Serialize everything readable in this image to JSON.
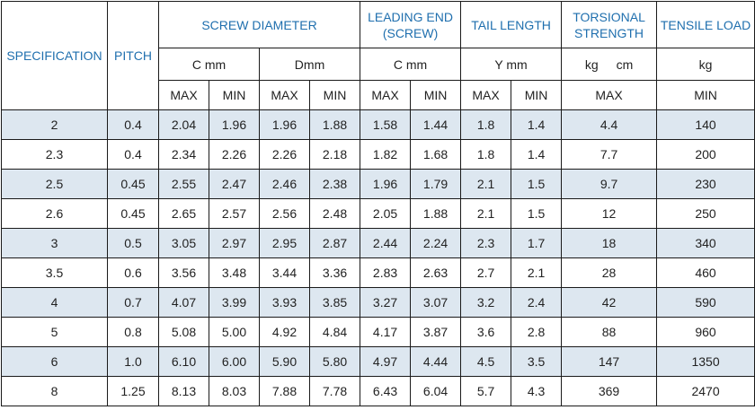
{
  "header": {
    "specification": "SPECIFICATION",
    "pitch": "PITCH",
    "screw_diameter": "SCREW DIAMETER",
    "leading_end": "LEADING END (SCREW)",
    "tail_length": "TAIL LENGTH",
    "torsional_strength": "TORSIONAL STRENGTH",
    "tensile_load": "TENSILE LOAD"
  },
  "units": {
    "screw_c": "C mm",
    "screw_d": "Dmm",
    "leading_c": "C mm",
    "tail_y": "Y mm",
    "torsional_kg": "kg",
    "torsional_cm": "cm",
    "tensile_kg": "kg"
  },
  "limits": {
    "max": "MAX",
    "min": "MIN"
  },
  "rows": [
    {
      "spec": "2",
      "pitch": "0.4",
      "c_max": "2.04",
      "c_min": "1.96",
      "d_max": "1.96",
      "d_min": "1.88",
      "le_max": "1.58",
      "le_min": "1.44",
      "y_max": "1.8",
      "y_min": "1.4",
      "torsional": "4.4",
      "tensile": "140"
    },
    {
      "spec": "2.3",
      "pitch": "0.4",
      "c_max": "2.34",
      "c_min": "2.26",
      "d_max": "2.26",
      "d_min": "2.18",
      "le_max": "1.82",
      "le_min": "1.68",
      "y_max": "1.8",
      "y_min": "1.4",
      "torsional": "7.7",
      "tensile": "200"
    },
    {
      "spec": "2.5",
      "pitch": "0.45",
      "c_max": "2.55",
      "c_min": "2.47",
      "d_max": "2.46",
      "d_min": "2.38",
      "le_max": "1.96",
      "le_min": "1.79",
      "y_max": "2.1",
      "y_min": "1.5",
      "torsional": "9.7",
      "tensile": "230"
    },
    {
      "spec": "2.6",
      "pitch": "0.45",
      "c_max": "2.65",
      "c_min": "2.57",
      "d_max": "2.56",
      "d_min": "2.48",
      "le_max": "2.05",
      "le_min": "1.88",
      "y_max": "2.1",
      "y_min": "1.5",
      "torsional": "12",
      "tensile": "250"
    },
    {
      "spec": "3",
      "pitch": "0.5",
      "c_max": "3.05",
      "c_min": "2.97",
      "d_max": "2.95",
      "d_min": "2.87",
      "le_max": "2.44",
      "le_min": "2.24",
      "y_max": "2.3",
      "y_min": "1.7",
      "torsional": "18",
      "tensile": "340"
    },
    {
      "spec": "3.5",
      "pitch": "0.6",
      "c_max": "3.56",
      "c_min": "3.48",
      "d_max": "3.44",
      "d_min": "3.36",
      "le_max": "2.83",
      "le_min": "2.63",
      "y_max": "2.7",
      "y_min": "2.1",
      "torsional": "28",
      "tensile": "460"
    },
    {
      "spec": "4",
      "pitch": "0.7",
      "c_max": "4.07",
      "c_min": "3.99",
      "d_max": "3.93",
      "d_min": "3.85",
      "le_max": "3.27",
      "le_min": "3.07",
      "y_max": "3.2",
      "y_min": "2.4",
      "torsional": "42",
      "tensile": "590"
    },
    {
      "spec": "5",
      "pitch": "0.8",
      "c_max": "5.08",
      "c_min": "5.00",
      "d_max": "4.92",
      "d_min": "4.84",
      "le_max": "4.17",
      "le_min": "3.87",
      "y_max": "3.6",
      "y_min": "2.8",
      "torsional": "88",
      "tensile": "960"
    },
    {
      "spec": "6",
      "pitch": "1.0",
      "c_max": "6.10",
      "c_min": "6.00",
      "d_max": "5.90",
      "d_min": "5.80",
      "le_max": "4.97",
      "le_min": "4.44",
      "y_max": "4.5",
      "y_min": "3.5",
      "torsional": "147",
      "tensile": "1350"
    },
    {
      "spec": "8",
      "pitch": "1.25",
      "c_max": "8.13",
      "c_min": "8.03",
      "d_max": "7.88",
      "d_min": "7.78",
      "le_max": "6.43",
      "le_min": "6.04",
      "y_max": "5.7",
      "y_min": "4.3",
      "torsional": "369",
      "tensile": "2470"
    }
  ]
}
